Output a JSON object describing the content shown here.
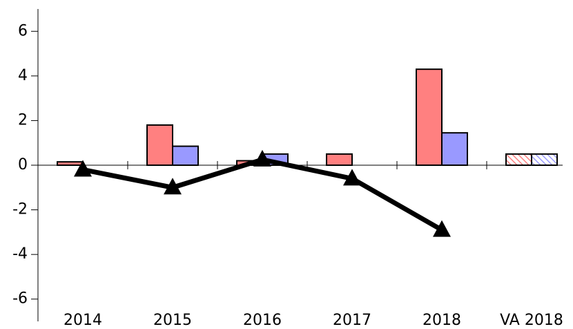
{
  "chart_data": {
    "type": "bar",
    "categories": [
      "2014",
      "2015",
      "2016",
      "2017",
      "2018",
      "VA 2018"
    ],
    "series": [
      {
        "color": "#ff8080",
        "values": [
          0.15,
          1.8,
          0.2,
          0.5,
          4.3,
          0.5
        ]
      },
      {
        "color": "#9999ff",
        "values": [
          null,
          0.85,
          0.5,
          null,
          1.45,
          0.5
        ]
      },
      {
        "type": "line",
        "color": "#000000",
        "values": [
          -0.2,
          -1.0,
          0.25,
          -0.6,
          -2.9,
          null
        ]
      }
    ],
    "hatched": [
      false,
      false,
      false,
      false,
      false,
      true
    ],
    "ylim": [
      -7,
      7
    ],
    "yticks": [
      -6,
      -4,
      -2,
      0,
      2,
      4,
      6
    ]
  }
}
